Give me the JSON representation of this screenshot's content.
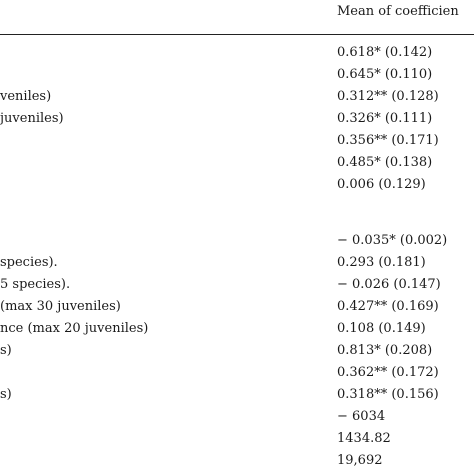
{
  "table": {
    "header": {
      "value_column": "Mean of coefficien"
    },
    "rows": [
      {
        "label": "",
        "value": "0.618* (0.142)"
      },
      {
        "label": "",
        "value": "0.645* (0.110)"
      },
      {
        "label": "veniles)",
        "value": "0.312** (0.128)"
      },
      {
        "label": " juveniles)",
        "value": "0.326* (0.111)"
      },
      {
        "label": "",
        "value": "0.356** (0.171)"
      },
      {
        "label": "",
        "value": "0.485* (0.138)"
      },
      {
        "label": "",
        "value": "0.006 (0.129)"
      },
      {
        "label": "",
        "value": "− 0.035* (0.002)"
      },
      {
        "label": "species).",
        "value": "0.293 (0.181)"
      },
      {
        "label": "5 species).",
        "value": "− 0.026 (0.147)"
      },
      {
        "label": "(max 30 juveniles)",
        "value": "0.427** (0.169)"
      },
      {
        "label": "nce (max 20 juveniles)",
        "value": "0.108 (0.149)"
      },
      {
        "label": "s)",
        "value": "0.813* (0.208)"
      },
      {
        "label": "",
        "value": "0.362** (0.172)"
      },
      {
        "label": "s)",
        "value": "0.318** (0.156)"
      },
      {
        "label": "",
        "value": "− 6034"
      },
      {
        "label": "",
        "value": "1434.82"
      },
      {
        "label": "",
        "value": "19,692"
      }
    ]
  }
}
